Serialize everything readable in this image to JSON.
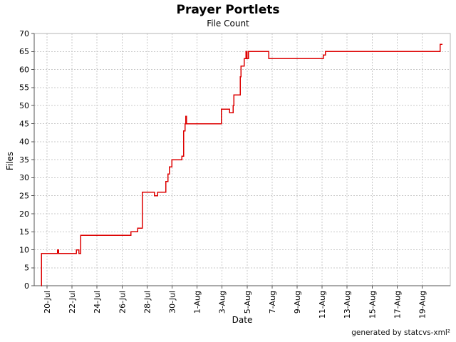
{
  "credit": "generated by statcvs-xml²",
  "chart_data": {
    "type": "line",
    "style": "step",
    "title": "Prayer Portlets",
    "subtitle": "File Count",
    "xlabel": "Date",
    "ylabel": "Files",
    "legend": "none",
    "grid": true,
    "line_color": "#dd0000",
    "grid_color": "#c9c9c9",
    "axis_color": "#545454",
    "border_color": "#b4b4b4",
    "ylim": [
      0,
      70
    ],
    "y_tick_step": 5,
    "x_tick_labels": [
      "20-Jul",
      "22-Jul",
      "24-Jul",
      "26-Jul",
      "28-Jul",
      "30-Jul",
      "1-Aug",
      "3-Aug",
      "5-Aug",
      "7-Aug",
      "9-Aug",
      "11-Aug",
      "13-Aug",
      "15-Aug",
      "17-Aug",
      "19-Aug"
    ],
    "x_tick_days": [
      0,
      2,
      4,
      6,
      8,
      10,
      12,
      14,
      16,
      18,
      20,
      22,
      24,
      26,
      28,
      30
    ],
    "series": [
      {
        "name": "File Count",
        "steps_day_value": [
          [
            -0.46,
            0
          ],
          [
            -0.45,
            9
          ],
          [
            0.85,
            10
          ],
          [
            0.91,
            9
          ],
          [
            2.34,
            10
          ],
          [
            2.56,
            9
          ],
          [
            2.7,
            14
          ],
          [
            6.72,
            15
          ],
          [
            7.25,
            16
          ],
          [
            7.63,
            26
          ],
          [
            8.6,
            25
          ],
          [
            8.85,
            26
          ],
          [
            9.5,
            29
          ],
          [
            9.67,
            31
          ],
          [
            9.78,
            33
          ],
          [
            9.97,
            35
          ],
          [
            10.77,
            36
          ],
          [
            10.93,
            43
          ],
          [
            11.05,
            45
          ],
          [
            11.1,
            47
          ],
          [
            11.16,
            45
          ],
          [
            13.95,
            49
          ],
          [
            14.6,
            48
          ],
          [
            14.87,
            50
          ],
          [
            14.95,
            53
          ],
          [
            15.45,
            58
          ],
          [
            15.52,
            61
          ],
          [
            15.76,
            63
          ],
          [
            15.9,
            65
          ],
          [
            16.0,
            63
          ],
          [
            16.1,
            65
          ],
          [
            17.72,
            63
          ],
          [
            22.1,
            64
          ],
          [
            22.25,
            65
          ],
          [
            31.45,
            67
          ]
        ],
        "end_day": 31.62
      }
    ]
  }
}
